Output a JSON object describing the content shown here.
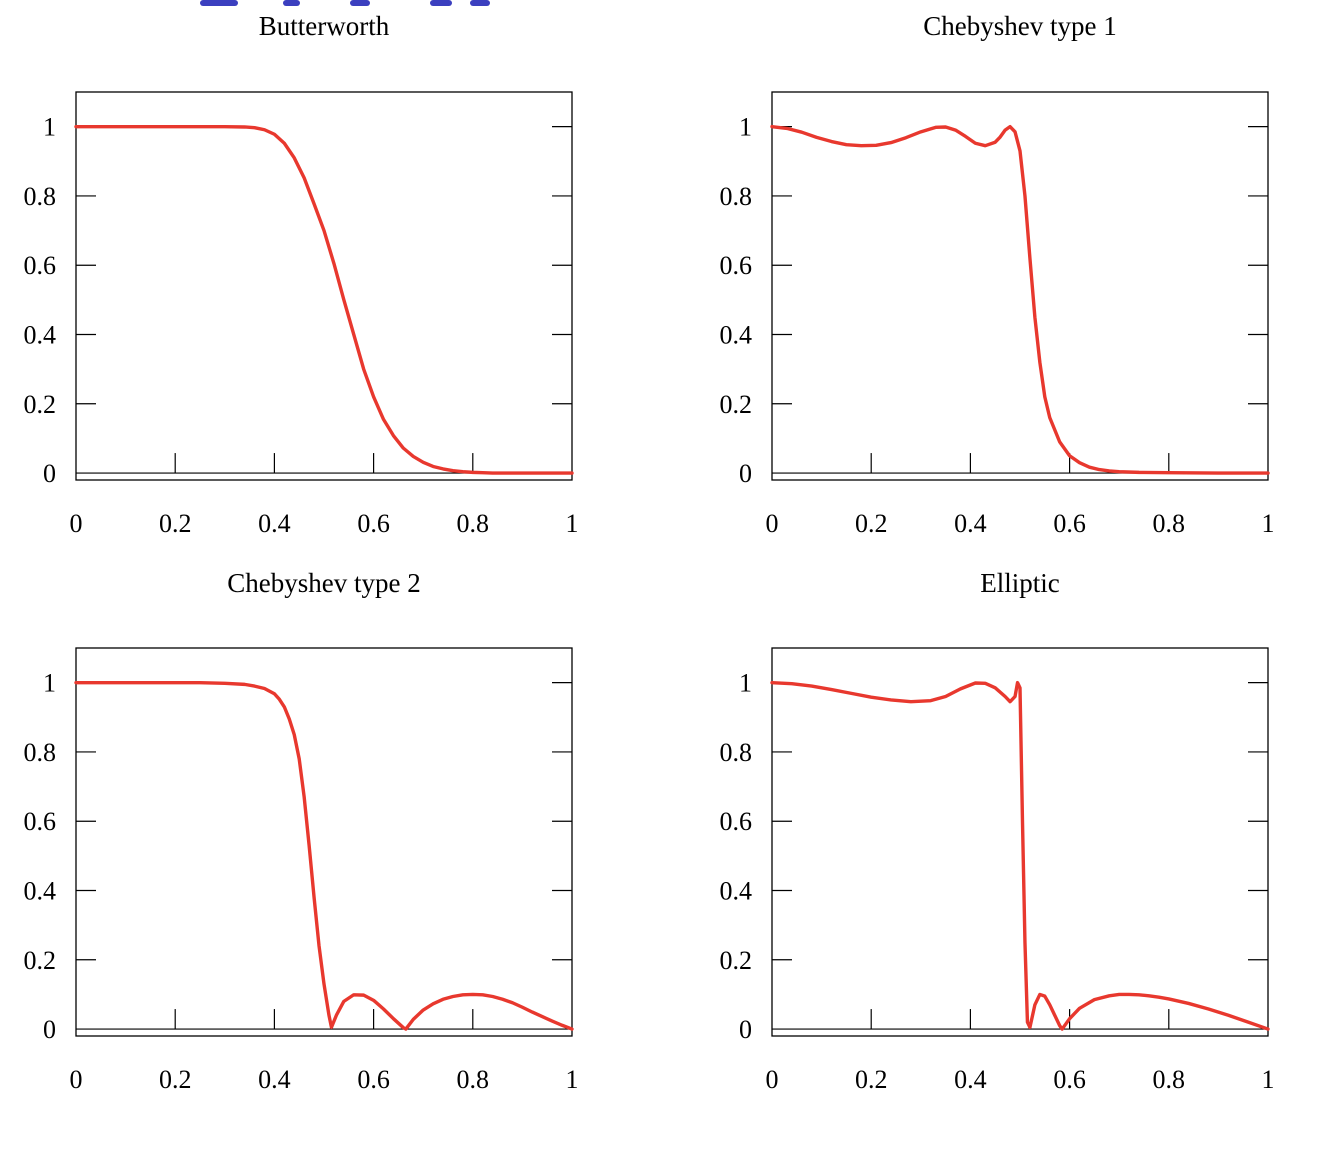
{
  "colors": {
    "curve": "#e8382e",
    "header_fragment": "#3b3fbf"
  },
  "chart_data": [
    {
      "type": "line",
      "title": "Butterworth",
      "xlim": [
        0,
        1
      ],
      "ylim": [
        -0.02,
        1.1
      ],
      "x_ticks": [
        "0",
        "0.2",
        "0.4",
        "0.6",
        "0.8",
        "1"
      ],
      "y_ticks": [
        "0",
        "0.2",
        "0.4",
        "0.6",
        "0.8",
        "1"
      ],
      "series": [
        {
          "x": [
            0,
            0.05,
            0.1,
            0.15,
            0.2,
            0.25,
            0.3,
            0.34,
            0.36,
            0.38,
            0.4,
            0.42,
            0.44,
            0.46,
            0.48,
            0.5,
            0.52,
            0.54,
            0.56,
            0.58,
            0.6,
            0.62,
            0.64,
            0.66,
            0.68,
            0.7,
            0.72,
            0.74,
            0.76,
            0.78,
            0.8,
            0.82,
            0.84,
            0.88,
            0.92,
            0.96,
            1
          ],
          "y": [
            1,
            1,
            1,
            1,
            1,
            1,
            1,
            0.999,
            0.997,
            0.991,
            0.978,
            0.952,
            0.91,
            0.852,
            0.777,
            0.7,
            0.605,
            0.5,
            0.4,
            0.3,
            0.22,
            0.155,
            0.108,
            0.072,
            0.048,
            0.031,
            0.019,
            0.012,
            0.007,
            0.004,
            0.002,
            0.001,
            0.0,
            0.0,
            0.0,
            0.0,
            0.0
          ]
        }
      ]
    },
    {
      "type": "line",
      "title": "Chebyshev type 1",
      "xlim": [
        0,
        1
      ],
      "ylim": [
        -0.02,
        1.1
      ],
      "x_ticks": [
        "0",
        "0.2",
        "0.4",
        "0.6",
        "0.8",
        "1"
      ],
      "y_ticks": [
        "0",
        "0.2",
        "0.4",
        "0.6",
        "0.8",
        "1"
      ],
      "series": [
        {
          "x": [
            0,
            0.03,
            0.06,
            0.09,
            0.12,
            0.15,
            0.18,
            0.21,
            0.24,
            0.27,
            0.3,
            0.33,
            0.35,
            0.37,
            0.39,
            0.41,
            0.43,
            0.45,
            0.46,
            0.47,
            0.48,
            0.49,
            0.5,
            0.51,
            0.52,
            0.53,
            0.54,
            0.55,
            0.56,
            0.58,
            0.6,
            0.62,
            0.64,
            0.66,
            0.68,
            0.7,
            0.74,
            0.8,
            0.9,
            1
          ],
          "y": [
            1,
            0.995,
            0.984,
            0.969,
            0.957,
            0.948,
            0.945,
            0.946,
            0.954,
            0.968,
            0.985,
            0.998,
            0.999,
            0.99,
            0.972,
            0.952,
            0.945,
            0.955,
            0.97,
            0.99,
            1.0,
            0.985,
            0.93,
            0.8,
            0.62,
            0.45,
            0.32,
            0.22,
            0.16,
            0.09,
            0.05,
            0.03,
            0.017,
            0.01,
            0.006,
            0.004,
            0.002,
            0.001,
            0.0,
            0.0
          ]
        }
      ]
    },
    {
      "type": "line",
      "title": "Chebyshev type 2",
      "xlim": [
        0,
        1
      ],
      "ylim": [
        -0.02,
        1.1
      ],
      "x_ticks": [
        "0",
        "0.2",
        "0.4",
        "0.6",
        "0.8",
        "1"
      ],
      "y_ticks": [
        "0",
        "0.2",
        "0.4",
        "0.6",
        "0.8",
        "1"
      ],
      "series": [
        {
          "x": [
            0,
            0.05,
            0.1,
            0.15,
            0.2,
            0.25,
            0.3,
            0.34,
            0.36,
            0.38,
            0.4,
            0.41,
            0.42,
            0.43,
            0.44,
            0.45,
            0.46,
            0.47,
            0.48,
            0.49,
            0.5,
            0.51,
            0.515,
            0.525,
            0.54,
            0.56,
            0.58,
            0.6,
            0.62,
            0.64,
            0.66,
            0.665,
            0.68,
            0.7,
            0.72,
            0.74,
            0.76,
            0.78,
            0.8,
            0.82,
            0.84,
            0.86,
            0.88,
            0.9,
            0.92,
            0.94,
            0.96,
            0.98,
            1
          ],
          "y": [
            1,
            1,
            1,
            1,
            1,
            1,
            0.998,
            0.995,
            0.99,
            0.983,
            0.968,
            0.952,
            0.93,
            0.895,
            0.85,
            0.78,
            0.67,
            0.53,
            0.38,
            0.24,
            0.13,
            0.04,
            0.005,
            0.04,
            0.08,
            0.099,
            0.098,
            0.083,
            0.058,
            0.03,
            0.004,
            0.0,
            0.028,
            0.055,
            0.073,
            0.086,
            0.094,
            0.099,
            0.1,
            0.099,
            0.094,
            0.086,
            0.076,
            0.063,
            0.049,
            0.036,
            0.023,
            0.011,
            0.0
          ]
        }
      ]
    },
    {
      "type": "line",
      "title": "Elliptic",
      "xlim": [
        0,
        1
      ],
      "ylim": [
        -0.02,
        1.1
      ],
      "x_ticks": [
        "0",
        "0.2",
        "0.4",
        "0.6",
        "0.8",
        "1"
      ],
      "y_ticks": [
        "0",
        "0.2",
        "0.4",
        "0.6",
        "0.8",
        "1"
      ],
      "series": [
        {
          "x": [
            0,
            0.04,
            0.08,
            0.12,
            0.16,
            0.2,
            0.24,
            0.28,
            0.32,
            0.35,
            0.38,
            0.41,
            0.43,
            0.45,
            0.47,
            0.48,
            0.49,
            0.495,
            0.5,
            0.505,
            0.51,
            0.515,
            0.52,
            0.53,
            0.54,
            0.55,
            0.56,
            0.57,
            0.58,
            0.585,
            0.6,
            0.62,
            0.65,
            0.68,
            0.7,
            0.72,
            0.74,
            0.76,
            0.78,
            0.8,
            0.84,
            0.88,
            0.92,
            0.96,
            1
          ],
          "y": [
            1,
            0.997,
            0.99,
            0.98,
            0.969,
            0.958,
            0.95,
            0.945,
            0.948,
            0.96,
            0.982,
            0.999,
            0.998,
            0.985,
            0.96,
            0.945,
            0.96,
            1.0,
            0.985,
            0.6,
            0.25,
            0.02,
            0.005,
            0.07,
            0.1,
            0.095,
            0.07,
            0.04,
            0.01,
            0.0,
            0.03,
            0.06,
            0.085,
            0.096,
            0.1,
            0.1,
            0.099,
            0.096,
            0.092,
            0.087,
            0.074,
            0.058,
            0.04,
            0.02,
            0.0
          ]
        }
      ]
    }
  ]
}
